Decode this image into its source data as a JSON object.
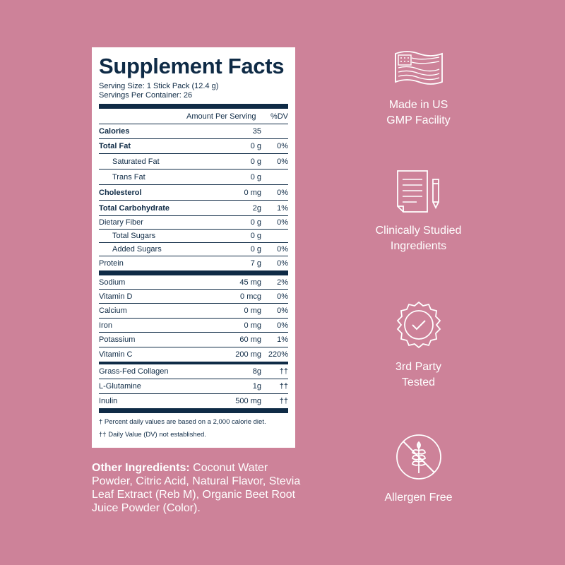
{
  "facts": {
    "title": "Supplement Facts",
    "serving_size": "Serving Size: 1 Stick Pack (12.4 g)",
    "servings_per_container": "Servings Per Container: 26",
    "amount_header": "Amount Per Serving",
    "dv_header": "%DV",
    "rows": [
      {
        "name": "Calories",
        "amount": "35",
        "dv": ""
      },
      {
        "name": "Total Fat",
        "amount": "0 g",
        "dv": "0%"
      },
      {
        "name": "Saturated Fat",
        "amount": "0 g",
        "dv": "0%"
      },
      {
        "name": "Trans Fat",
        "amount": "0 g",
        "dv": ""
      },
      {
        "name": "Cholesterol",
        "amount": "0 mg",
        "dv": "0%"
      },
      {
        "name": "Total Carbohydrate",
        "amount": "2g",
        "dv": "1%"
      },
      {
        "name": "Dietary Fiber",
        "amount": "0 g",
        "dv": "0%"
      },
      {
        "name": "Total Sugars",
        "amount": "0 g",
        "dv": ""
      },
      {
        "name": "Added Sugars",
        "amount": "0 g",
        "dv": "0%"
      },
      {
        "name": "Protein",
        "amount": "7 g",
        "dv": "0%"
      },
      {
        "name": "Sodium",
        "amount": "45 mg",
        "dv": "2%"
      },
      {
        "name": "Vitamin D",
        "amount": "0 mcg",
        "dv": "0%"
      },
      {
        "name": "Calcium",
        "amount": "0 mg",
        "dv": "0%"
      },
      {
        "name": "Iron",
        "amount": "0 mg",
        "dv": "0%"
      },
      {
        "name": "Potassium",
        "amount": "60 mg",
        "dv": "1%"
      },
      {
        "name": "Vitamin C",
        "amount": "200 mg",
        "dv": "220%"
      },
      {
        "name": "Grass-Fed Collagen",
        "amount": "8g",
        "dv": "††"
      },
      {
        "name": "L-Glutamine",
        "amount": "1g",
        "dv": "††"
      },
      {
        "name": "Inulin",
        "amount": "500 mg",
        "dv": "††"
      }
    ],
    "footnote_1": "† Percent daily values are based on a 2,000 calorie diet.",
    "footnote_2": "†† Daily Value (DV) not established."
  },
  "other_ingredients": {
    "label": "Other Ingredients:",
    "text": " Coconut Water Powder, Citric Acid, Natural Flavor, Stevia Leaf Extract (Reb M), Organic Beet Root Juice Powder (Color)."
  },
  "badges": [
    {
      "icon": "us-flag-icon",
      "line1": "Made in US",
      "line2": "GMP Facility"
    },
    {
      "icon": "document-pencil-icon",
      "line1": "Clinically Studied",
      "line2": "Ingredients"
    },
    {
      "icon": "check-seal-icon",
      "line1": "3rd Party",
      "line2": "Tested"
    },
    {
      "icon": "no-wheat-icon",
      "line1": "Allergen Free",
      "line2": ""
    }
  ],
  "colors": {
    "background": "#cd8299",
    "navy": "#0f2b46",
    "white": "#ffffff"
  }
}
